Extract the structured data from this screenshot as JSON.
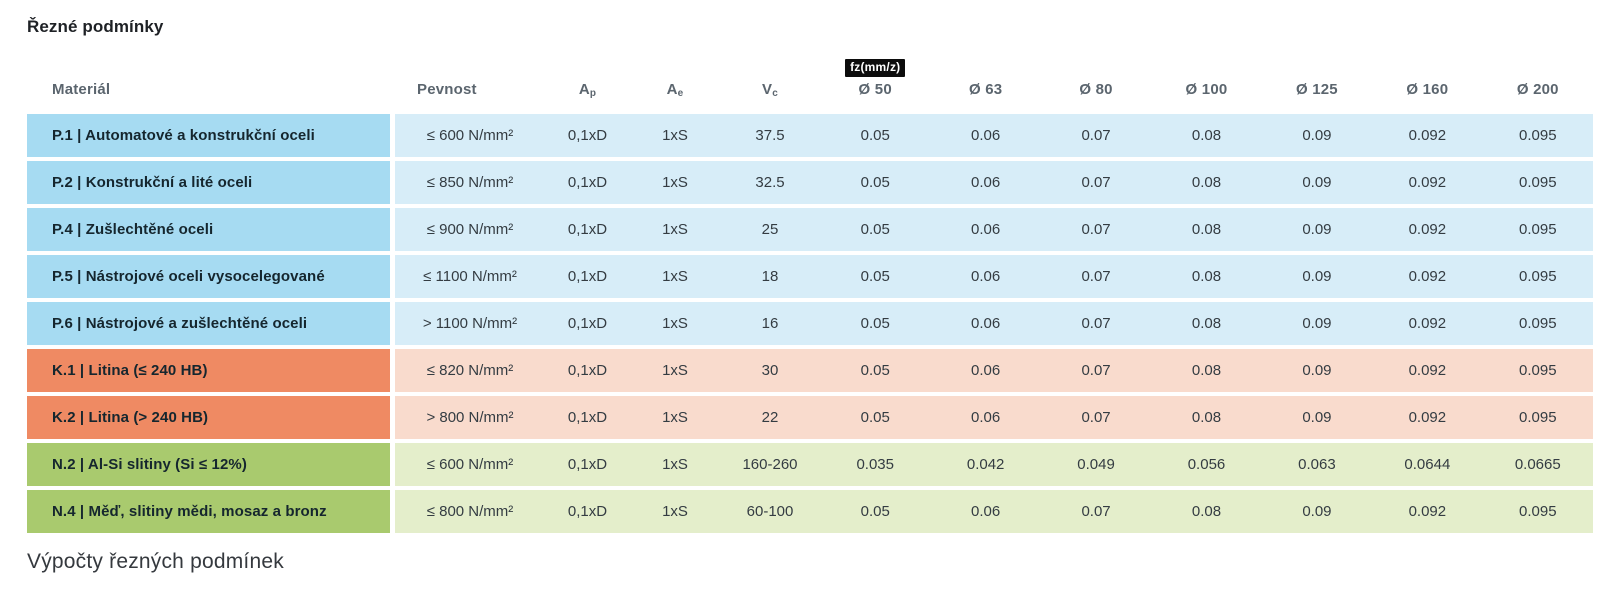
{
  "page": {
    "title": "Řezné podmínky",
    "footer_heading": "Výpočty řezných podmínek"
  },
  "table": {
    "headers": {
      "material": "Materiál",
      "pevnost": "Pevnost",
      "ap": {
        "base": "A",
        "sub": "p"
      },
      "ae": {
        "base": "A",
        "sub": "e"
      },
      "vc": {
        "base": "V",
        "sub": "c"
      },
      "fz_badge": "fz(mm/z)",
      "diameters": [
        "Ø 50",
        "Ø 63",
        "Ø 80",
        "Ø 100",
        "Ø 125",
        "Ø 160",
        "Ø 200"
      ]
    },
    "colors": {
      "steel": {
        "dark": "#a6dbf2",
        "light": "#d7edf8"
      },
      "cast_iron": {
        "dark": "#ef8a63",
        "light": "#f9dbcd"
      },
      "non_ferrous": {
        "dark": "#a9ca6e",
        "light": "#e4eecb"
      }
    },
    "rows": [
      {
        "group": "steel",
        "material": "P.1 | Automatové a konstrukční oceli",
        "pevnost": "≤ 600 N/mm²",
        "ap": "0,1xD",
        "ae": "1xS",
        "vc": "37.5",
        "fz": [
          "0.05",
          "0.06",
          "0.07",
          "0.08",
          "0.09",
          "0.092",
          "0.095"
        ]
      },
      {
        "group": "steel",
        "material": "P.2 | Konstrukční a lité oceli",
        "pevnost": "≤ 850 N/mm²",
        "ap": "0,1xD",
        "ae": "1xS",
        "vc": "32.5",
        "fz": [
          "0.05",
          "0.06",
          "0.07",
          "0.08",
          "0.09",
          "0.092",
          "0.095"
        ]
      },
      {
        "group": "steel",
        "material": "P.4 | Zušlechtěné oceli",
        "pevnost": "≤ 900 N/mm²",
        "ap": "0,1xD",
        "ae": "1xS",
        "vc": "25",
        "fz": [
          "0.05",
          "0.06",
          "0.07",
          "0.08",
          "0.09",
          "0.092",
          "0.095"
        ]
      },
      {
        "group": "steel",
        "material": "P.5 | Nástrojové oceli vysocelegované",
        "pevnost": "≤ 1100 N/mm²",
        "ap": "0,1xD",
        "ae": "1xS",
        "vc": "18",
        "fz": [
          "0.05",
          "0.06",
          "0.07",
          "0.08",
          "0.09",
          "0.092",
          "0.095"
        ]
      },
      {
        "group": "steel",
        "material": "P.6 | Nástrojové a zušlechtěné oceli",
        "pevnost": "> 1100 N/mm²",
        "ap": "0,1xD",
        "ae": "1xS",
        "vc": "16",
        "fz": [
          "0.05",
          "0.06",
          "0.07",
          "0.08",
          "0.09",
          "0.092",
          "0.095"
        ]
      },
      {
        "group": "cast_iron",
        "material": "K.1 | Litina (≤ 240 HB)",
        "pevnost": "≤ 820 N/mm²",
        "ap": "0,1xD",
        "ae": "1xS",
        "vc": "30",
        "fz": [
          "0.05",
          "0.06",
          "0.07",
          "0.08",
          "0.09",
          "0.092",
          "0.095"
        ]
      },
      {
        "group": "cast_iron",
        "material": "K.2 | Litina (> 240 HB)",
        "pevnost": "> 800 N/mm²",
        "ap": "0,1xD",
        "ae": "1xS",
        "vc": "22",
        "fz": [
          "0.05",
          "0.06",
          "0.07",
          "0.08",
          "0.09",
          "0.092",
          "0.095"
        ]
      },
      {
        "group": "non_ferrous",
        "material": "N.2 | Al-Si slitiny (Si ≤ 12%)",
        "pevnost": "≤ 600 N/mm²",
        "ap": "0,1xD",
        "ae": "1xS",
        "vc": "160-260",
        "fz": [
          "0.035",
          "0.042",
          "0.049",
          "0.056",
          "0.063",
          "0.0644",
          "0.0665"
        ]
      },
      {
        "group": "non_ferrous",
        "material": "N.4 | Měď, slitiny mědi, mosaz a bronz",
        "pevnost": "≤ 800 N/mm²",
        "ap": "0,1xD",
        "ae": "1xS",
        "vc": "60-100",
        "fz": [
          "0.05",
          "0.06",
          "0.07",
          "0.08",
          "0.09",
          "0.092",
          "0.095"
        ]
      }
    ]
  }
}
